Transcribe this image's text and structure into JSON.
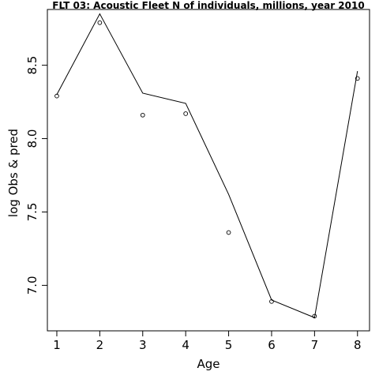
{
  "chart_data": {
    "type": "line",
    "title": "FLT 03: Acoustic Fleet  N of individuals, millions, year 2010",
    "xlabel": "Age",
    "ylabel": "log Obs & pred",
    "xlim": [
      0.78,
      8.28
    ],
    "ylim": [
      6.69,
      8.88
    ],
    "x_ticks": [
      1,
      2,
      3,
      4,
      5,
      6,
      7,
      8
    ],
    "y_ticks": [
      7.0,
      7.5,
      8.0,
      8.5
    ],
    "y_tick_labels": [
      "7.0",
      "7.5",
      "8.0",
      "8.5"
    ],
    "grid": false,
    "series": [
      {
        "style": "points",
        "marker": "open-circle",
        "x": [
          1,
          2,
          3,
          4,
          5,
          6,
          7,
          8
        ],
        "y": [
          8.29,
          8.79,
          8.16,
          8.17,
          7.36,
          6.89,
          6.79,
          8.41
        ]
      },
      {
        "style": "line",
        "x": [
          1,
          2,
          3,
          4,
          5,
          6,
          7,
          8
        ],
        "y": [
          8.3,
          8.85,
          8.31,
          8.24,
          7.62,
          6.9,
          6.78,
          8.46
        ]
      }
    ]
  }
}
